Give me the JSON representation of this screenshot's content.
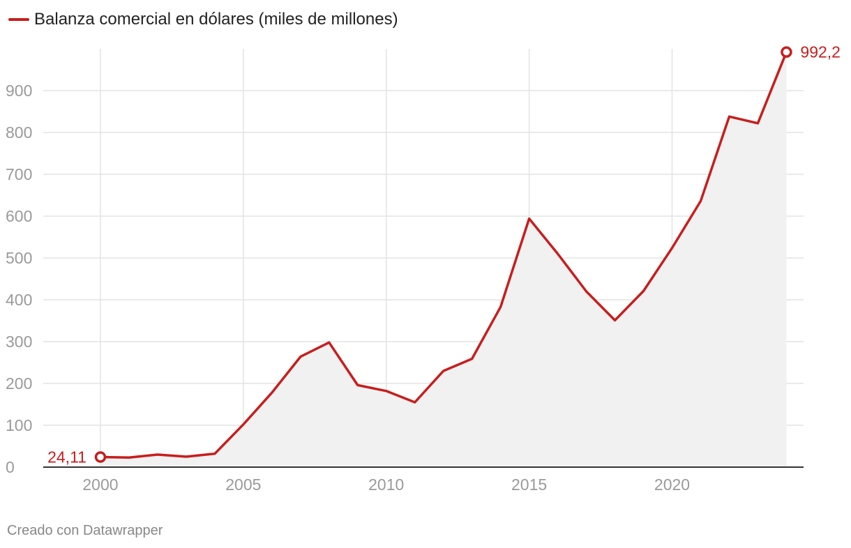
{
  "chart_data": {
    "type": "area",
    "title": "",
    "xlabel": "",
    "ylabel": "",
    "legend": {
      "position": "top-left"
    },
    "grid": true,
    "xlim": [
      1998,
      2024.6
    ],
    "ylim": [
      0,
      1000
    ],
    "x_ticks": [
      2000,
      2005,
      2010,
      2015,
      2020
    ],
    "y_ticks": [
      0,
      100,
      200,
      300,
      400,
      500,
      600,
      700,
      800,
      900
    ],
    "series": [
      {
        "name": "Balanza comercial en dólares (miles de millones)",
        "color": "#c71e1d",
        "area_color": "#f1f1f1",
        "x": [
          2000,
          2001,
          2002,
          2003,
          2004,
          2005,
          2006,
          2007,
          2008,
          2009,
          2010,
          2011,
          2012,
          2013,
          2014,
          2015,
          2016,
          2017,
          2018,
          2019,
          2020,
          2021,
          2022,
          2023,
          2024
        ],
        "values": [
          24.11,
          23,
          30,
          25,
          32,
          102,
          178,
          264,
          298,
          196,
          182,
          155,
          230,
          259,
          383,
          594,
          510,
          420,
          351,
          421,
          524,
          636,
          838,
          822,
          992.2
        ]
      }
    ],
    "annotations": [
      {
        "x": 2000,
        "label": "24,11"
      },
      {
        "x": 2024,
        "label": "992,2"
      }
    ]
  },
  "footer": {
    "credit": "Creado con Datawrapper"
  }
}
